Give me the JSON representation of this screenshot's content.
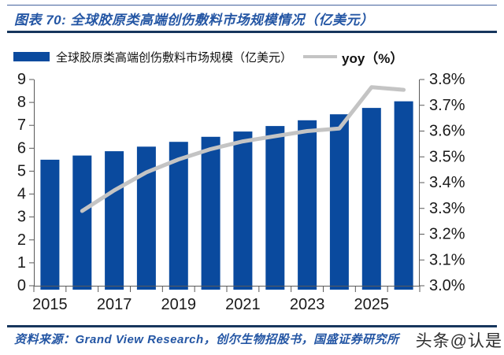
{
  "header": {
    "title": "图表 70:  全球胶原类高端创伤敷料市场规模情况（亿美元）"
  },
  "legend": {
    "bar_label": "全球胶原类高端创伤敷料市场规模（亿美元）",
    "line_label": "yoy（%）"
  },
  "footer": {
    "source": "资料来源：Grand View Research，创尔生物招股书，国盛证券研究所",
    "watermark": "头条@认是"
  },
  "colors": {
    "bar": "#0a4a9e",
    "line": "#c4c4c4",
    "accent_text": "#2456a4",
    "rule": "#17365d",
    "axis": "#595959",
    "label": "#1a1a1a",
    "watermark": "#2e2e2e"
  },
  "chart_data": {
    "type": "bar",
    "title": "全球胶原类高端创伤敷料市场规模情况（亿美元）",
    "categories": [
      "2015",
      "2016",
      "2017",
      "2018",
      "2019",
      "2020",
      "2021",
      "2022",
      "2023",
      "2024",
      "2025",
      "2026"
    ],
    "series": [
      {
        "name": "全球胶原类高端创伤敷料市场规模（亿美元）",
        "type": "bar",
        "axis": "left",
        "values": [
          5.5,
          5.68,
          5.87,
          6.07,
          6.28,
          6.5,
          6.73,
          6.97,
          7.22,
          7.48,
          7.76,
          8.05
        ]
      },
      {
        "name": "yoy（%）",
        "type": "line",
        "axis": "right",
        "values": [
          null,
          3.29,
          3.37,
          3.44,
          3.49,
          3.53,
          3.56,
          3.58,
          3.6,
          3.61,
          3.77,
          3.76
        ]
      }
    ],
    "left_axis": {
      "min": 0,
      "max": 9,
      "step": 1,
      "ticks": [
        "0",
        "1",
        "2",
        "3",
        "4",
        "5",
        "6",
        "7",
        "8",
        "9"
      ]
    },
    "right_axis": {
      "min": 3.0,
      "max": 3.8,
      "step": 0.1,
      "ticks": [
        "3.0%",
        "3.1%",
        "3.2%",
        "3.3%",
        "3.4%",
        "3.5%",
        "3.6%",
        "3.7%",
        "3.8%"
      ]
    },
    "x_tick_labels": [
      "2015",
      "2017",
      "2019",
      "2021",
      "2023",
      "2025"
    ],
    "grid": false,
    "legend_position": "top"
  }
}
